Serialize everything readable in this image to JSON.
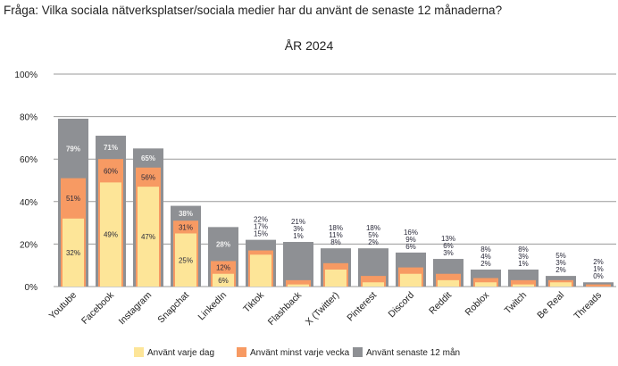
{
  "question": "Fråga: Vilka sociala nätverksplatser/sociala medier har du använt de senaste 12 månaderna?",
  "chart_data": {
    "type": "bar",
    "title": "ÅR 2024",
    "xlabel": "",
    "ylabel": "",
    "ylim": [
      0,
      100
    ],
    "yticks": [
      "0%",
      "20%",
      "40%",
      "60%",
      "80%",
      "100%"
    ],
    "grid": true,
    "legend_placement": "bottom",
    "categories": [
      "Youtube",
      "Facebook",
      "Instagram",
      "Snapchat",
      "LinkedIn",
      "Tiktok",
      "Flashback",
      "X (Twitter)",
      "Pinterest",
      "Discord",
      "Reddit",
      "Roblox",
      "Twitch",
      "Be Real",
      "Threads"
    ],
    "series": [
      {
        "name": "Använt varje dag",
        "color": "#fde598",
        "values": [
          32,
          49,
          47,
          25,
          6,
          15,
          1,
          8,
          2,
          6,
          3,
          2,
          1,
          2,
          0
        ]
      },
      {
        "name": "Använt minst varje vecka",
        "color": "#f79a63",
        "values": [
          51,
          60,
          56,
          31,
          12,
          17,
          3,
          11,
          5,
          9,
          6,
          4,
          3,
          3,
          1
        ]
      },
      {
        "name": "Använt senaste 12 mån",
        "color": "#8e9094",
        "values": [
          79,
          71,
          65,
          38,
          28,
          22,
          21,
          18,
          18,
          16,
          13,
          8,
          8,
          5,
          2
        ]
      }
    ]
  }
}
